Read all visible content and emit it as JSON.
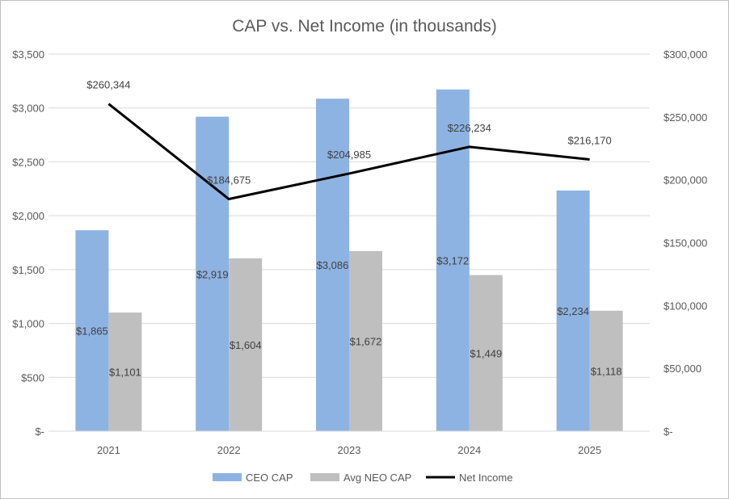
{
  "chart_data": {
    "type": "bar",
    "title": "CAP vs. Net Income (in thousands)",
    "categories": [
      "2021",
      "2022",
      "2023",
      "2024",
      "2025"
    ],
    "series": [
      {
        "name": "CEO CAP",
        "type": "bar",
        "axis": "left",
        "color": "#8db3e2",
        "values": [
          1865,
          2919,
          3086,
          3172,
          2234
        ],
        "labels": [
          "$1,865",
          "$2,919",
          "$3,086",
          "$3,172",
          "$2,234"
        ]
      },
      {
        "name": "Avg NEO CAP",
        "type": "bar",
        "axis": "left",
        "color": "#bfbfbf",
        "values": [
          1101,
          1604,
          1672,
          1449,
          1118
        ],
        "labels": [
          "$1,101",
          "$1,604",
          "$1,672",
          "$1,449",
          "$1,118"
        ]
      },
      {
        "name": "Net Income",
        "type": "line",
        "axis": "right",
        "color": "#000000",
        "values": [
          260344,
          184675,
          204985,
          226234,
          216170
        ],
        "labels": [
          "$260,344",
          "$184,675",
          "$204,985",
          "$226,234",
          "$216,170"
        ]
      }
    ],
    "y_left": {
      "min": 0,
      "max": 3500,
      "ticks": [
        0,
        500,
        1000,
        1500,
        2000,
        2500,
        3000,
        3500
      ],
      "tick_labels": [
        "$-",
        "$500",
        "$1,000",
        "$1,500",
        "$2,000",
        "$2,500",
        "$3,000",
        "$3,500"
      ]
    },
    "y_right": {
      "min": 0,
      "max": 300000,
      "ticks": [
        0,
        50000,
        100000,
        150000,
        200000,
        250000,
        300000
      ],
      "tick_labels": [
        "$-",
        "$50,000",
        "$100,000",
        "$150,000",
        "$200,000",
        "$250,000",
        "$300,000"
      ]
    },
    "grid": true,
    "legend": "bottom"
  }
}
